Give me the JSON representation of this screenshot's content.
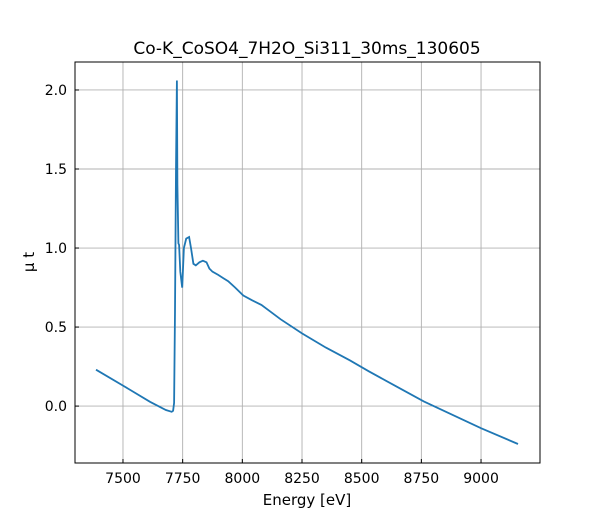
{
  "chart_data": {
    "type": "line",
    "title": "Co-K_CoSO4_7H2O_Si311_30ms_130605",
    "xlabel": "Energy [eV]",
    "ylabel": "μ t",
    "xlim": [
      7299,
      9247
    ],
    "ylim": [
      -0.36,
      2.177
    ],
    "grid": true,
    "xticks": [
      7500,
      7750,
      8000,
      8250,
      8500,
      8750,
      9000
    ],
    "xtick_labels": [
      "7500",
      "7750",
      "8000",
      "8250",
      "8500",
      "8750",
      "9000"
    ],
    "yticks": [
      0.0,
      0.5,
      1.0,
      1.5,
      2.0
    ],
    "ytick_labels": [
      "0.0",
      "0.5",
      "1.0",
      "1.5",
      "2.0"
    ],
    "series": [
      {
        "name": "mu",
        "color": "#1f77b4",
        "x": [
          7387,
          7500,
          7613,
          7680,
          7704,
          7710,
          7714,
          7718,
          7722,
          7726,
          7728,
          7732,
          7735,
          7740,
          7748,
          7755,
          7765,
          7777,
          7785,
          7795,
          7805,
          7820,
          7835,
          7850,
          7862,
          7875,
          7899,
          7920,
          7941,
          7970,
          8004,
          8040,
          8080,
          8116,
          8160,
          8250,
          8350,
          8450,
          8530,
          8650,
          8760,
          8880,
          9000,
          9155
        ],
        "y": [
          0.23,
          0.13,
          0.027,
          -0.025,
          -0.036,
          -0.03,
          0.02,
          0.6,
          1.5,
          2.06,
          1.4,
          1.03,
          1.02,
          0.85,
          0.75,
          1.0,
          1.06,
          1.07,
          1.0,
          0.9,
          0.89,
          0.91,
          0.92,
          0.91,
          0.87,
          0.85,
          0.83,
          0.81,
          0.79,
          0.75,
          0.7,
          0.67,
          0.64,
          0.6,
          0.55,
          0.46,
          0.37,
          0.29,
          0.22,
          0.12,
          0.03,
          -0.055,
          -0.14,
          -0.24
        ]
      }
    ]
  }
}
